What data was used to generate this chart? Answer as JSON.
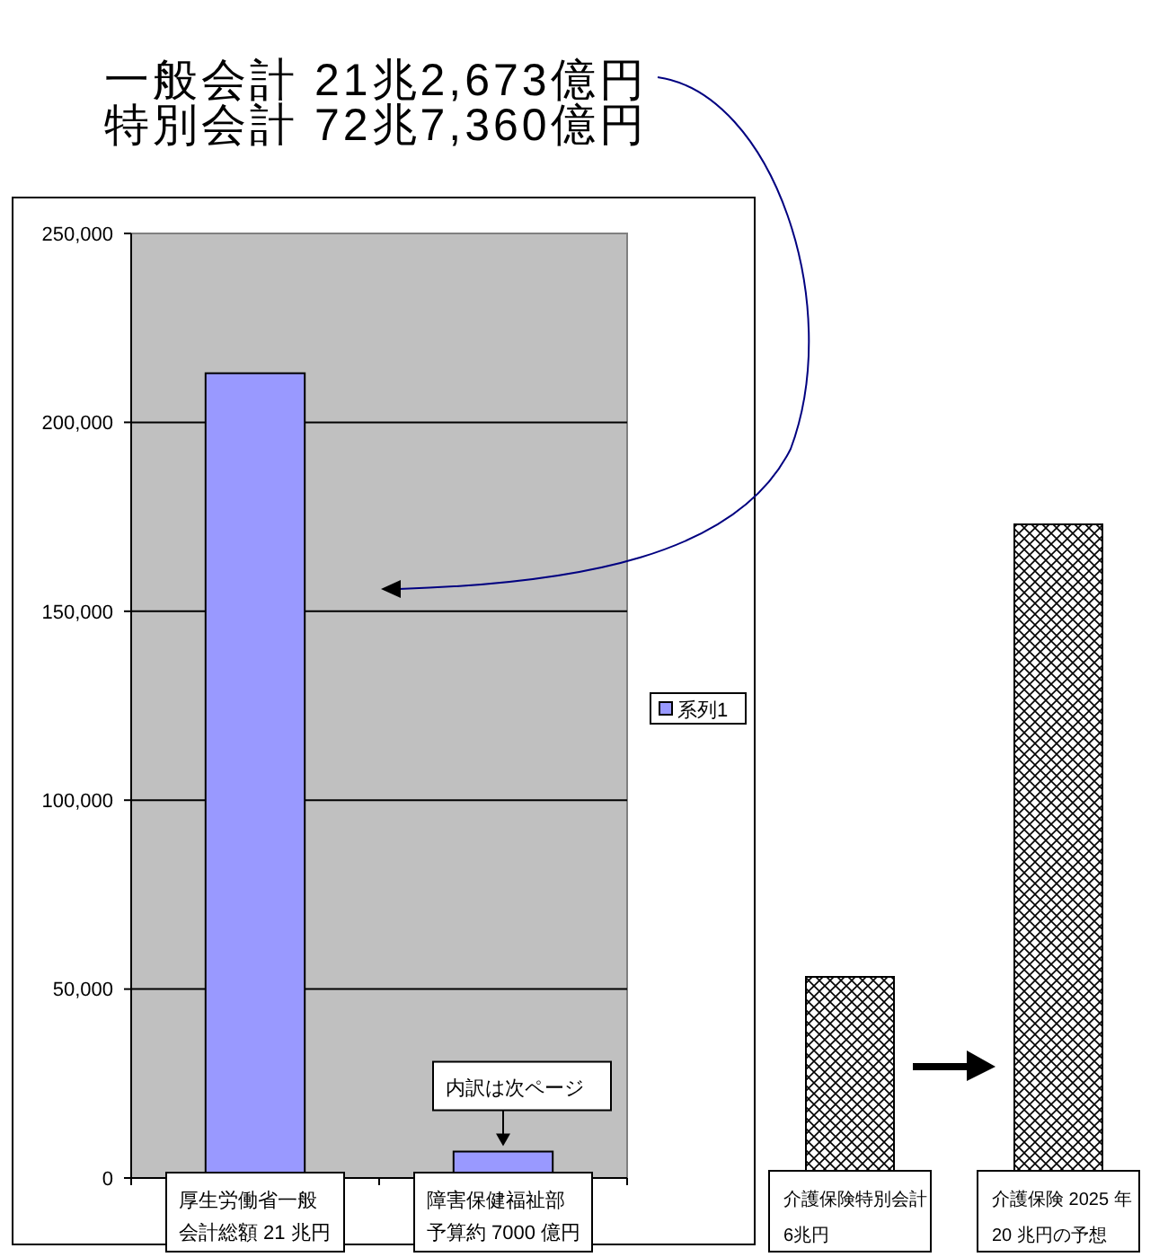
{
  "chart_data": [
    {
      "type": "bar",
      "annotations": [
        "一般会計 21兆2,673億円",
        "特別会計 72兆7,360億円",
        {
          "text": "内訳は次ページ",
          "x": "障害保健福祉部予算約 7000 億円",
          "y": 7000
        }
      ],
      "categories": [
        "厚生労働省一般会計総額 21 兆円",
        "障害保健福祉部予算約 7000 億円"
      ],
      "series": [
        {
          "name": "系列1",
          "color": "#9999ff",
          "values": [
            213000,
            7000
          ]
        }
      ],
      "ylim": [
        0,
        250000
      ],
      "yticks": [
        0,
        {
          "value": 50000,
          "label": "50,000"
        },
        {
          "value": 100000,
          "label": "100,000"
        },
        {
          "value": 150000,
          "label": "150,000"
        },
        {
          "value": 200000,
          "label": "200,000"
        },
        {
          "value": 250000,
          "label": "250,000"
        }
      ],
      "grid": "y",
      "legend": "right"
    },
    {
      "type": "bar",
      "categories": [
        "介護保険特別会計",
        "介護保険 2025 年"
      ],
      "values": [
        6,
        20
      ],
      "value_labels": [
        "6兆円",
        "20 兆円の予想"
      ],
      "color": "#000000"
    }
  ]
}
